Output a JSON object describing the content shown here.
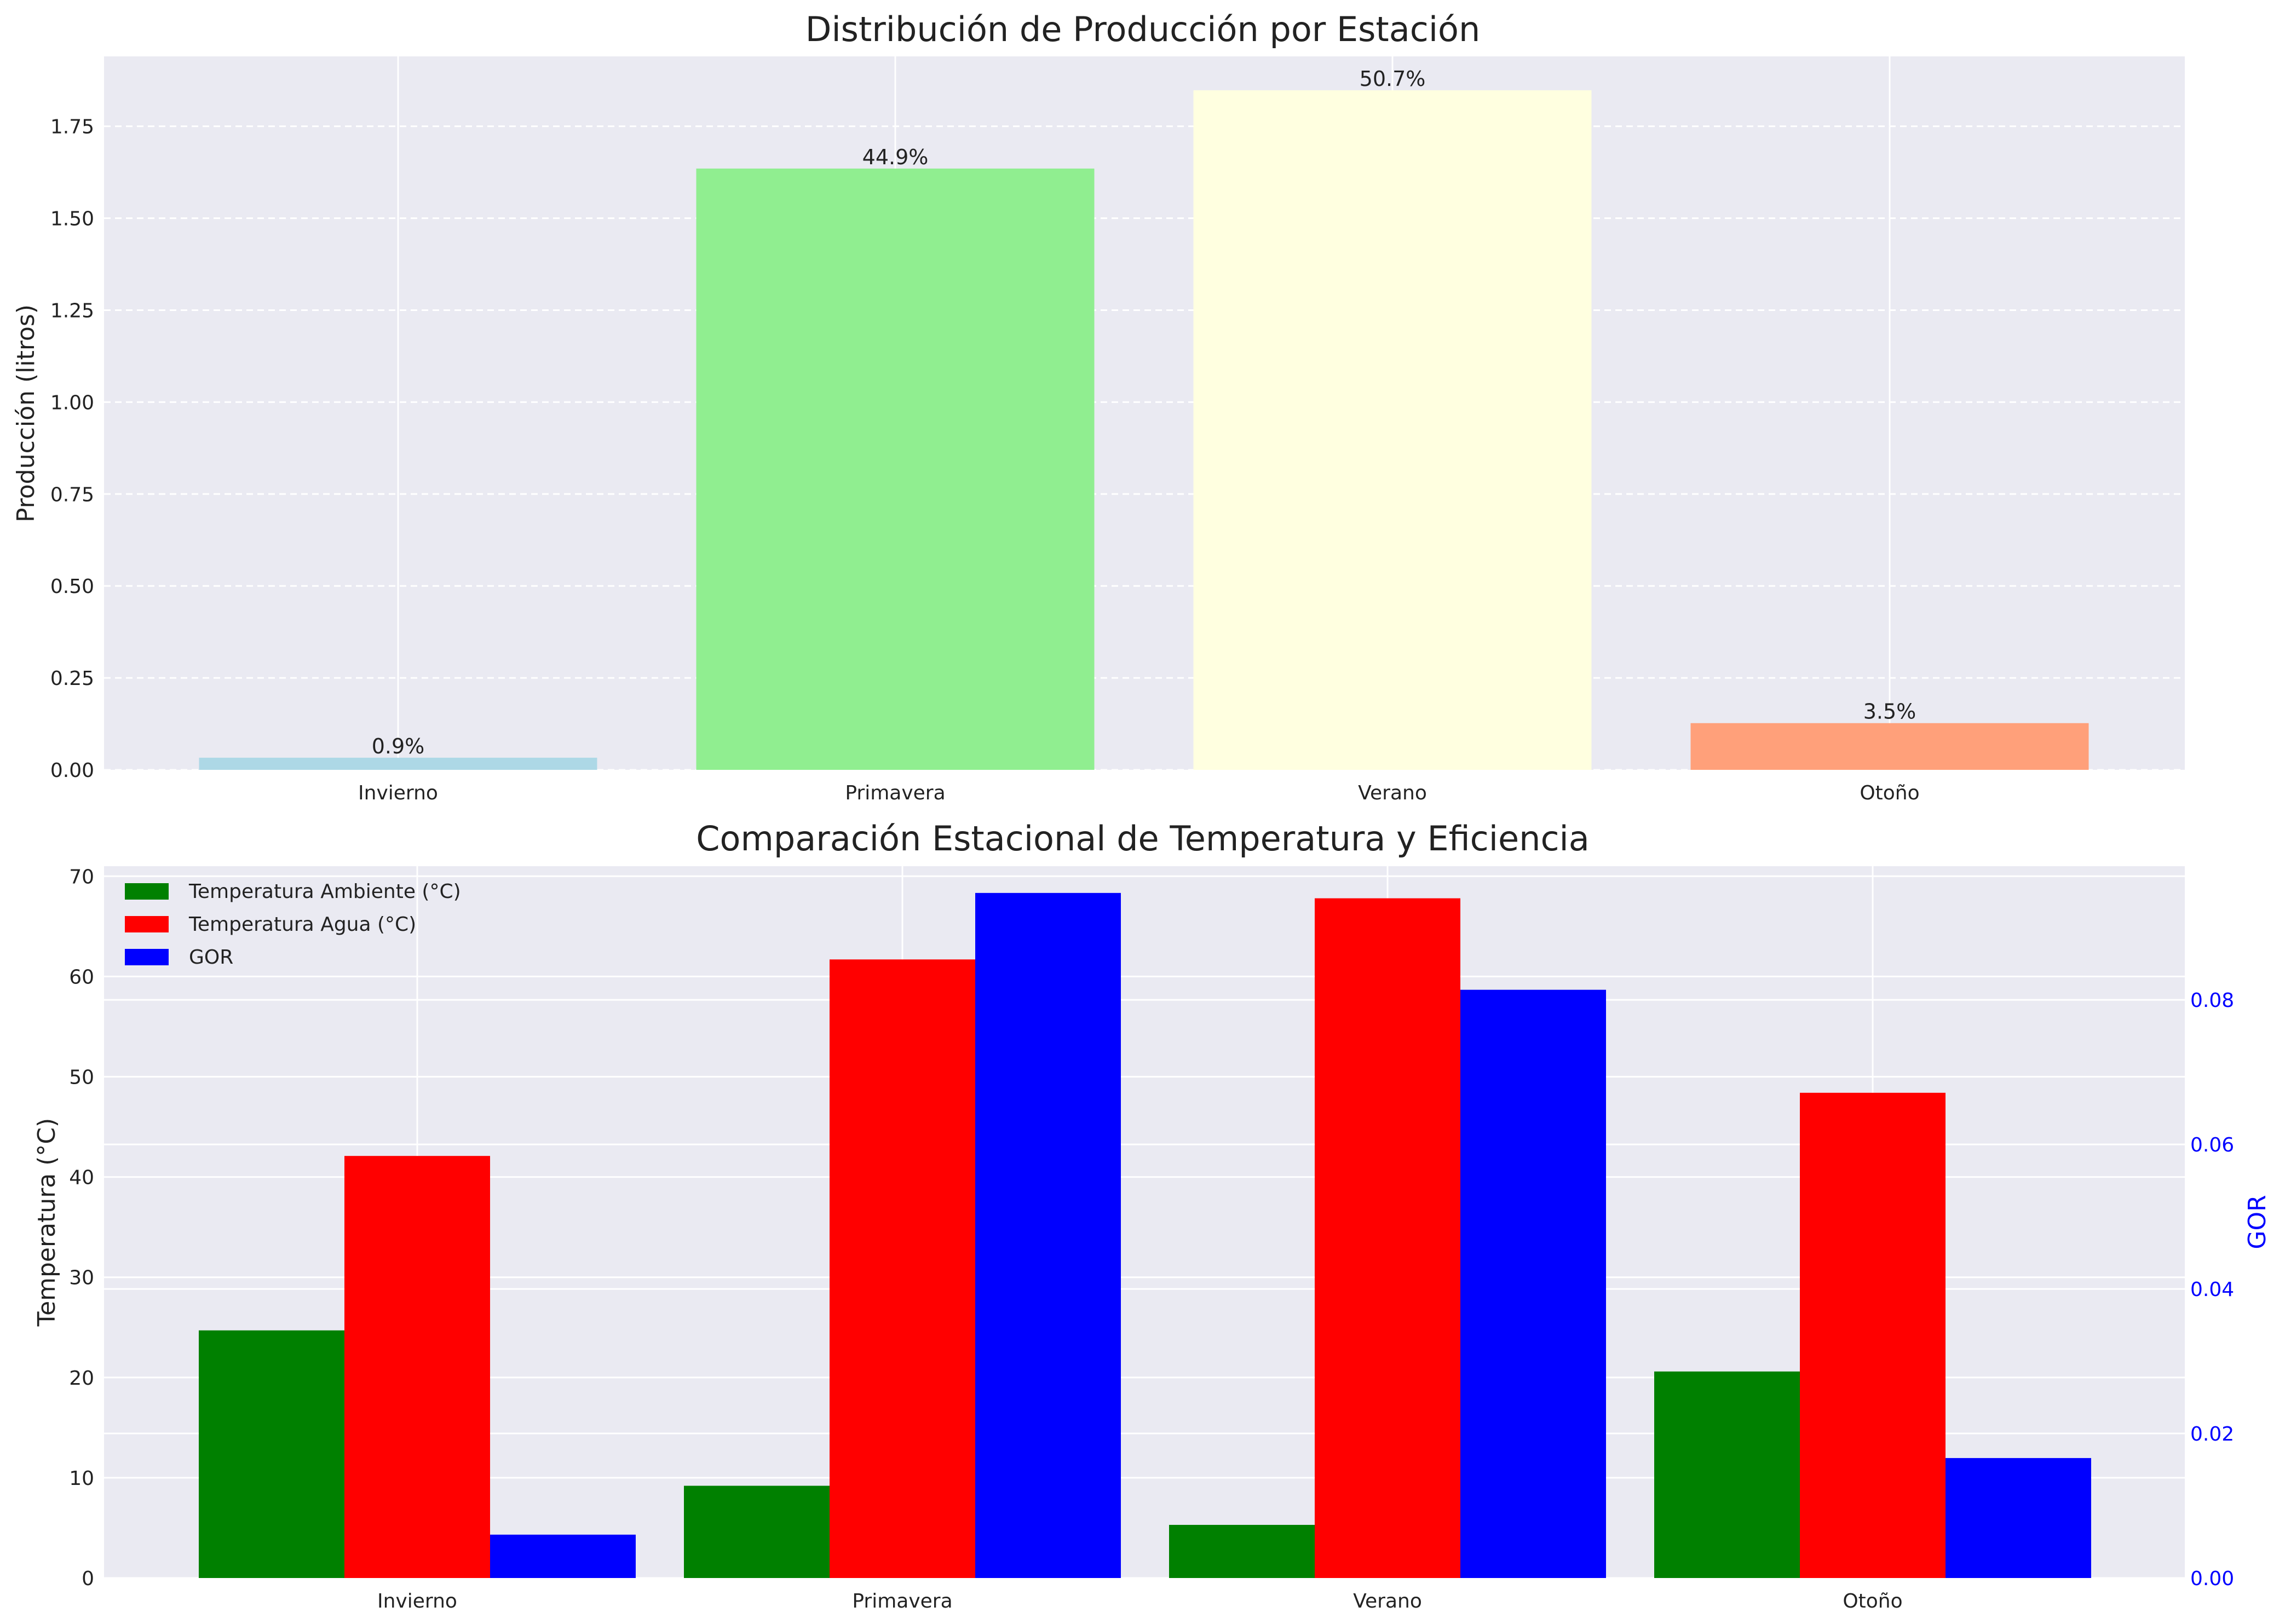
{
  "chart_data": [
    {
      "type": "bar",
      "title": "Distribución de Producción por Estación",
      "xlabel": "",
      "ylabel": "Producción (litros)",
      "categories": [
        "Invierno",
        "Primavera",
        "Verano",
        "Otoño"
      ],
      "values": [
        0.033,
        1.635,
        1.848,
        0.127
      ],
      "bar_labels": [
        "0.9%",
        "44.9%",
        "50.7%",
        "3.5%"
      ],
      "colors": [
        "#add8e6",
        "#90ee90",
        "#ffffe0",
        "#ffa07a"
      ],
      "ylim": [
        0,
        1.94
      ],
      "yticks": [
        0.0,
        0.25,
        0.5,
        0.75,
        1.0,
        1.25,
        1.5,
        1.75
      ],
      "ytick_labels": [
        "0.00",
        "0.25",
        "0.50",
        "0.75",
        "1.00",
        "1.25",
        "1.50",
        "1.75"
      ],
      "grid": true
    },
    {
      "type": "bar",
      "title": "Comparación Estacional de Temperatura y Eficiencia",
      "xlabel": "",
      "ylabel": "Temperatura (°C)",
      "y2label": "GOR",
      "categories": [
        "Invierno",
        "Primavera",
        "Verano",
        "Otoño"
      ],
      "series": [
        {
          "name": "Temperatura Ambiente (°C)",
          "axis": "left",
          "color": "#008000",
          "values": [
            24.7,
            9.2,
            5.3,
            20.6
          ]
        },
        {
          "name": "Temperatura Agua (°C)",
          "axis": "left",
          "color": "#ff0000",
          "values": [
            42.1,
            61.7,
            67.8,
            48.4
          ]
        },
        {
          "name": "GOR",
          "axis": "right",
          "color": "#0000ff",
          "values": [
            0.006,
            0.0948,
            0.0814,
            0.0166
          ]
        }
      ],
      "ylim": [
        0,
        71
      ],
      "yticks": [
        0,
        10,
        20,
        30,
        40,
        50,
        60,
        70
      ],
      "ytick_labels": [
        "0",
        "10",
        "20",
        "30",
        "40",
        "50",
        "60",
        "70"
      ],
      "y2lim": [
        0,
        0.0985
      ],
      "y2ticks": [
        0,
        0.02,
        0.04,
        0.06,
        0.08
      ],
      "y2tick_labels": [
        "0.00",
        "0.02",
        "0.04",
        "0.06",
        "0.08"
      ],
      "y2_color": "#0000ff",
      "legend_position": "upper-left",
      "grid": true
    }
  ]
}
